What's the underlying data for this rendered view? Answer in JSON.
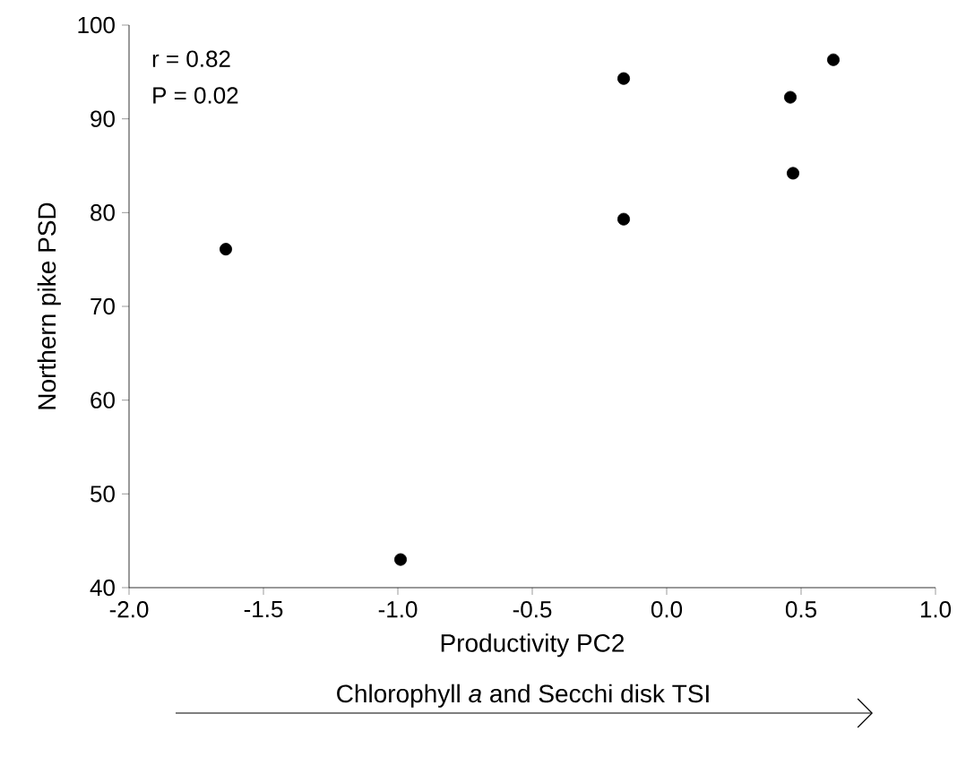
{
  "chart_data": {
    "type": "scatter",
    "xlabel": "Productivity PC2",
    "ylabel": "Northern pike PSD",
    "annotations": [
      "r = 0.82",
      "P = 0.02",
      "Chlorophyll *a* and Secchi disk TSI"
    ],
    "x": [
      -1.64,
      -0.99,
      -0.16,
      -0.16,
      0.46,
      0.47,
      0.62
    ],
    "values": [
      76.1,
      43,
      94.3,
      79.3,
      92.3,
      84.2,
      96.3
    ],
    "color": "#000000",
    "xlim": [
      -2.0,
      1.0
    ],
    "ylim": [
      40,
      100
    ],
    "xticks": [
      {
        "value": -2.0,
        "label": "-2.0"
      },
      {
        "value": -1.5,
        "label": "-1.5"
      },
      {
        "value": -1.0,
        "label": "-1.0"
      },
      {
        "value": -0.5,
        "label": "-0.5"
      },
      {
        "value": 0.0,
        "label": "0.0"
      },
      {
        "value": 0.5,
        "label": "0.5"
      },
      {
        "value": 1.0,
        "label": "1.0"
      }
    ],
    "yticks": [
      40,
      50,
      60,
      70,
      80,
      90,
      100
    ]
  }
}
